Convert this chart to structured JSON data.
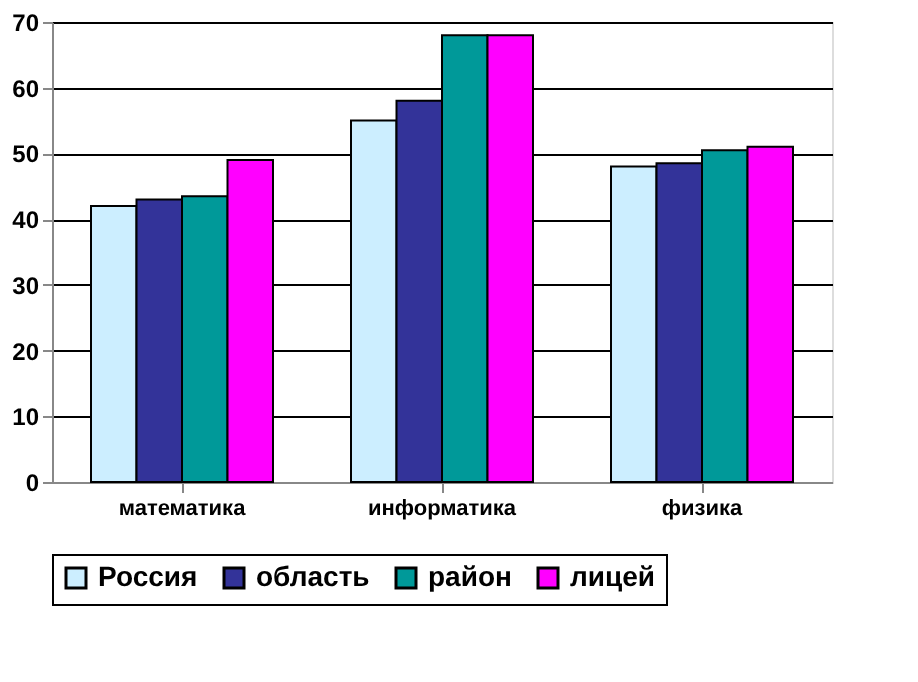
{
  "chart_data": {
    "type": "bar",
    "categories": [
      "математика",
      "информатика",
      "физика"
    ],
    "series": [
      {
        "name": "Россия",
        "color": "#cceeff",
        "values": [
          42,
          55,
          48
        ]
      },
      {
        "name": "область",
        "color": "#333399",
        "values": [
          43,
          58,
          48.5
        ]
      },
      {
        "name": "район",
        "color": "#009999",
        "values": [
          43.5,
          68,
          50.5
        ]
      },
      {
        "name": "лицей",
        "color": "#ff00ff",
        "values": [
          49,
          68,
          51
        ]
      }
    ],
    "ylim": [
      0,
      70
    ],
    "yticks": [
      0,
      10,
      20,
      30,
      40,
      50,
      60,
      70
    ],
    "grid": "y",
    "legend": "bottom"
  }
}
